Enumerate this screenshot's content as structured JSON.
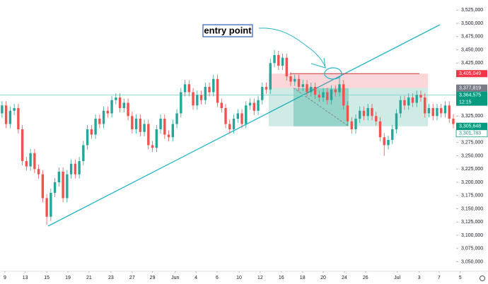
{
  "chart_data": {
    "type": "candlestick",
    "up_color": "#26a69a",
    "down_color": "#ef5350",
    "open": [
      3330000,
      3345000,
      3310000,
      3335000,
      3340000,
      3300000,
      3240000,
      3230000,
      3255000,
      3225000,
      3215000,
      3170000,
      3135000,
      3180000,
      3200000,
      3220000,
      3170000,
      3215000,
      3235000,
      3215000,
      3240000,
      3270000,
      3300000,
      3290000,
      3320000,
      3310000,
      3335000,
      3330000,
      3355000,
      3360000,
      3340000,
      3350000,
      3325000,
      3300000,
      3320000,
      3295000,
      3310000,
      3270000,
      3265000,
      3300000,
      3320000,
      3290000,
      3285000,
      3310000,
      3330000,
      3370000,
      3385000,
      3370000,
      3345000,
      3365000,
      3355000,
      3380000,
      3370000,
      3395000,
      3350000,
      3340000,
      3310000,
      3300000,
      3320000,
      3330000,
      3310000,
      3345000,
      3350000,
      3335000,
      3355000,
      3380000,
      3375000,
      3425000,
      3440000,
      3420000,
      3435000,
      3400000,
      3390000,
      3395000,
      3380000,
      3385000,
      3370000,
      3380000,
      3365000,
      3360000,
      3370000,
      3355000,
      3375000,
      3370000,
      3385000,
      3345000,
      3315000,
      3300000,
      3320000,
      3335000,
      3325000,
      3340000,
      3325000,
      3315000,
      3285000,
      3270000,
      3280000,
      3300000,
      3330000,
      3355000,
      3345000,
      3360000,
      3350000,
      3365000,
      3360000,
      3330000,
      3340000,
      3325000,
      3340000,
      3330000,
      3345000,
      3320000
    ],
    "high": [
      3353000,
      3353000,
      3343000,
      3348000,
      3348000,
      3308000,
      3248000,
      3263000,
      3263000,
      3233000,
      3223000,
      3178000,
      3188000,
      3208000,
      3228000,
      3228000,
      3223000,
      3243000,
      3243000,
      3248000,
      3278000,
      3308000,
      3308000,
      3328000,
      3328000,
      3343000,
      3343000,
      3363000,
      3368000,
      3368000,
      3358000,
      3358000,
      3333000,
      3328000,
      3328000,
      3318000,
      3318000,
      3278000,
      3308000,
      3328000,
      3328000,
      3298000,
      3318000,
      3338000,
      3378000,
      3393000,
      3393000,
      3378000,
      3373000,
      3373000,
      3388000,
      3388000,
      3403000,
      3403000,
      3358000,
      3348000,
      3318000,
      3328000,
      3338000,
      3338000,
      3353000,
      3358000,
      3358000,
      3363000,
      3388000,
      3388000,
      3433000,
      3450000,
      3448000,
      3443000,
      3443000,
      3408000,
      3403000,
      3403000,
      3393000,
      3393000,
      3388000,
      3388000,
      3373000,
      3378000,
      3378000,
      3383000,
      3383000,
      3400000,
      3393000,
      3353000,
      3323000,
      3328000,
      3343000,
      3343000,
      3348000,
      3348000,
      3333000,
      3323000,
      3293000,
      3288000,
      3308000,
      3338000,
      3363000,
      3363000,
      3368000,
      3368000,
      3373000,
      3373000,
      3368000,
      3348000,
      3348000,
      3348000,
      3348000,
      3353000,
      3353000,
      3328000
    ],
    "low": [
      3322000,
      3302000,
      3302000,
      3327000,
      3292000,
      3232000,
      3222000,
      3222000,
      3217000,
      3207000,
      3162000,
      3120000,
      3127000,
      3172000,
      3192000,
      3162000,
      3162000,
      3207000,
      3207000,
      3207000,
      3232000,
      3262000,
      3282000,
      3282000,
      3302000,
      3302000,
      3322000,
      3322000,
      3347000,
      3332000,
      3332000,
      3317000,
      3292000,
      3292000,
      3287000,
      3287000,
      3262000,
      3257000,
      3257000,
      3292000,
      3282000,
      3277000,
      3277000,
      3302000,
      3322000,
      3362000,
      3362000,
      3337000,
      3337000,
      3347000,
      3347000,
      3362000,
      3362000,
      3342000,
      3332000,
      3302000,
      3292000,
      3292000,
      3312000,
      3302000,
      3302000,
      3337000,
      3327000,
      3327000,
      3347000,
      3367000,
      3367000,
      3417000,
      3412000,
      3412000,
      3392000,
      3382000,
      3382000,
      3372000,
      3372000,
      3362000,
      3362000,
      3357000,
      3352000,
      3352000,
      3347000,
      3347000,
      3362000,
      3362000,
      3337000,
      3307000,
      3292000,
      3292000,
      3312000,
      3317000,
      3317000,
      3317000,
      3307000,
      3277000,
      3250000,
      3262000,
      3272000,
      3292000,
      3322000,
      3337000,
      3337000,
      3342000,
      3342000,
      3352000,
      3322000,
      3322000,
      3317000,
      3317000,
      3322000,
      3322000,
      3312000,
      3302000
    ],
    "close": [
      3345000,
      3310000,
      3335000,
      3340000,
      3300000,
      3240000,
      3230000,
      3255000,
      3225000,
      3215000,
      3170000,
      3135000,
      3180000,
      3200000,
      3220000,
      3170000,
      3215000,
      3235000,
      3215000,
      3240000,
      3270000,
      3300000,
      3290000,
      3320000,
      3310000,
      3335000,
      3330000,
      3355000,
      3360000,
      3340000,
      3350000,
      3325000,
      3300000,
      3320000,
      3295000,
      3310000,
      3270000,
      3265000,
      3300000,
      3320000,
      3290000,
      3285000,
      3310000,
      3330000,
      3370000,
      3385000,
      3370000,
      3345000,
      3365000,
      3355000,
      3380000,
      3370000,
      3395000,
      3350000,
      3340000,
      3310000,
      3300000,
      3320000,
      3330000,
      3310000,
      3345000,
      3350000,
      3335000,
      3355000,
      3380000,
      3375000,
      3425000,
      3440000,
      3420000,
      3435000,
      3400000,
      3390000,
      3395000,
      3380000,
      3385000,
      3370000,
      3380000,
      3365000,
      3360000,
      3370000,
      3355000,
      3375000,
      3370000,
      3385000,
      3345000,
      3315000,
      3300000,
      3320000,
      3335000,
      3325000,
      3340000,
      3325000,
      3315000,
      3285000,
      3270000,
      3280000,
      3300000,
      3330000,
      3355000,
      3345000,
      3360000,
      3350000,
      3365000,
      3360000,
      3330000,
      3340000,
      3325000,
      3340000,
      3330000,
      3345000,
      3320000,
      3310000
    ],
    "xlim": [
      -0.5,
      111.7
    ],
    "xticks": [
      {
        "value": 0.7,
        "label": "9"
      },
      {
        "value": 5.7,
        "label": "13"
      },
      {
        "value": 11,
        "label": "15"
      },
      {
        "value": 16.2,
        "label": "19"
      },
      {
        "value": 21.4,
        "label": "21"
      },
      {
        "value": 26.8,
        "label": "23"
      },
      {
        "value": 32,
        "label": "27"
      },
      {
        "value": 37,
        "label": "29"
      },
      {
        "value": 42.6,
        "label": "Jun"
      },
      {
        "value": 47.7,
        "label": "4"
      },
      {
        "value": 52.9,
        "label": "6"
      },
      {
        "value": 58.3,
        "label": "10"
      },
      {
        "value": 63.5,
        "label": "12"
      },
      {
        "value": 68.7,
        "label": "16"
      },
      {
        "value": 73.9,
        "label": "18"
      },
      {
        "value": 79,
        "label": "20"
      },
      {
        "value": 84.2,
        "label": "24"
      },
      {
        "value": 89.4,
        "label": "26"
      },
      {
        "value": 97.2,
        "label": "Jul"
      },
      {
        "value": 102.6,
        "label": "3"
      },
      {
        "value": 107.5,
        "label": "7"
      },
      {
        "value": 112.7,
        "label": "5"
      }
    ],
    "ylim": [
      3032000,
      3544000
    ],
    "yticks": [
      {
        "value": 3525000,
        "label": "3,525,000"
      },
      {
        "value": 3500000,
        "label": "3,500,000"
      },
      {
        "value": 3475000,
        "label": "3,475,000"
      },
      {
        "value": 3450000,
        "label": "3,450,000"
      },
      {
        "value": 3425000,
        "label": "3,425,000"
      },
      {
        "value": 3325000,
        "label": "3,325,000"
      },
      {
        "value": 3275000,
        "label": "3,275,000"
      },
      {
        "value": 3250000,
        "label": "3,250,000"
      },
      {
        "value": 3225000,
        "label": "3,225,000"
      },
      {
        "value": 3200000,
        "label": "3,200,000"
      },
      {
        "value": 3175000,
        "label": "3,175,000"
      },
      {
        "value": 3150000,
        "label": "3,150,000"
      },
      {
        "value": 3125000,
        "label": "3,125,000"
      },
      {
        "value": 3100000,
        "label": "3,100,000"
      },
      {
        "value": 3075000,
        "label": "3,075,000"
      },
      {
        "value": 3050000,
        "label": "3,050,000"
      }
    ],
    "price_labels": [
      {
        "value": 3405049,
        "label": "3,405,049",
        "color": "#f23645"
      },
      {
        "value": 3377819,
        "label": "3,377,819",
        "color": "#787b86"
      },
      {
        "value": 3364575,
        "label": "3,364,575",
        "color": "#089981"
      },
      {
        "value": 3305648,
        "label": "3,305,648",
        "color": "#089981"
      },
      {
        "value": 3301783,
        "label": "3,301,783",
        "color": "#ffffff"
      }
    ],
    "countdown": "12:15",
    "annotation": "entry point"
  }
}
